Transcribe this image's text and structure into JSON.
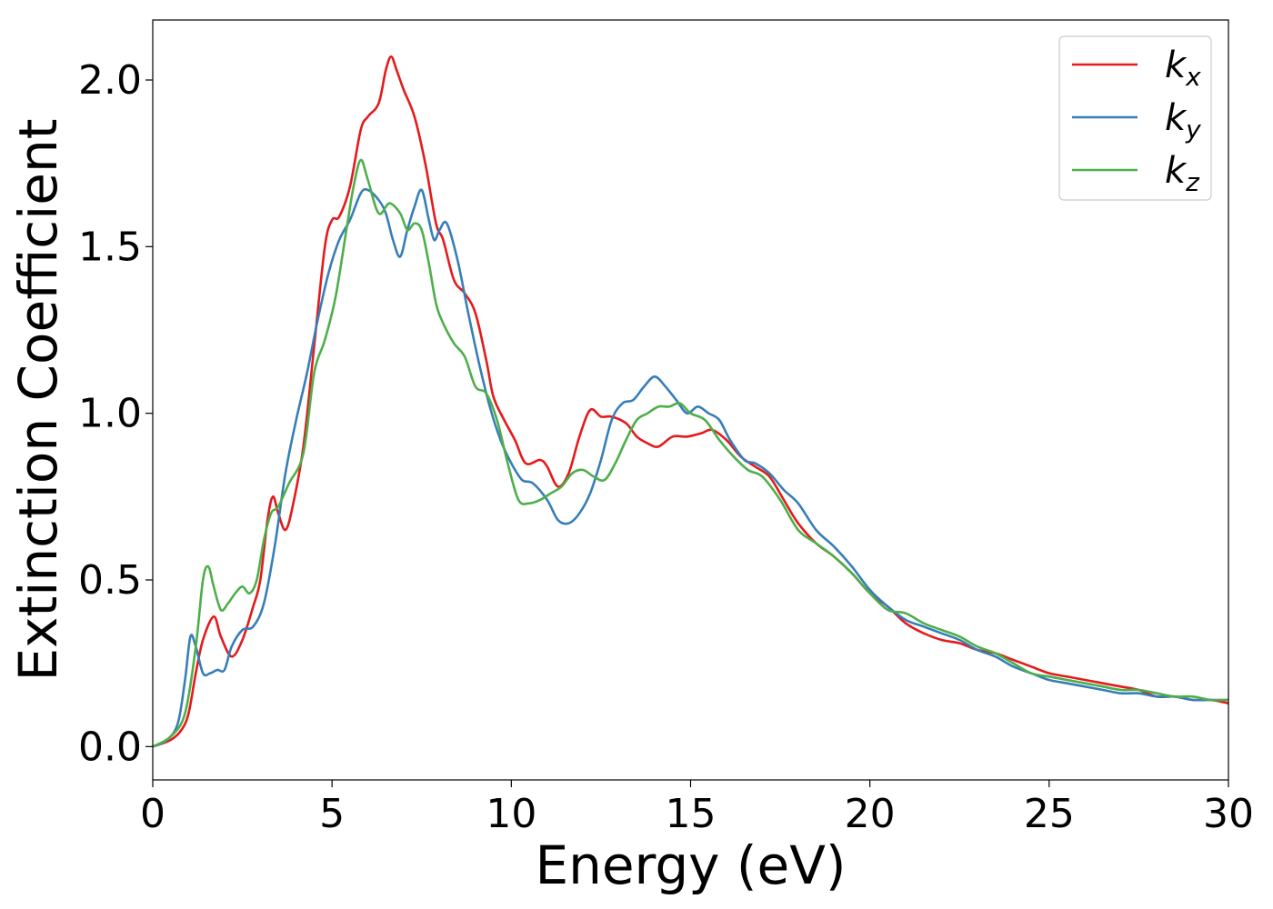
{
  "chart_data": {
    "type": "line",
    "xlabel": "Energy (eV)",
    "ylabel": "Extinction Coefficient",
    "xlim": [
      0,
      30
    ],
    "ylim": [
      -0.1,
      2.18
    ],
    "x_ticks": [
      0,
      5,
      10,
      15,
      20,
      25,
      30
    ],
    "x_tick_labels": [
      "0",
      "5",
      "10",
      "15",
      "20",
      "25",
      "30"
    ],
    "y_ticks": [
      0.0,
      0.5,
      1.0,
      1.5,
      2.0
    ],
    "y_tick_labels": [
      "0.0",
      "0.5",
      "1.0",
      "1.5",
      "2.0"
    ],
    "grid": false,
    "legend_position": "top-right",
    "series": [
      {
        "name": "k_x",
        "legend_main": "k",
        "legend_sub": "x",
        "color": "#e41a1c",
        "x": [
          0,
          0.5,
          0.8,
          1.0,
          1.2,
          1.4,
          1.7,
          1.9,
          2.2,
          2.5,
          2.8,
          3.0,
          3.2,
          3.35,
          3.5,
          3.7,
          3.9,
          4.2,
          4.5,
          4.8,
          5.0,
          5.2,
          5.5,
          5.8,
          6.0,
          6.3,
          6.5,
          6.65,
          6.8,
          7.0,
          7.3,
          7.6,
          7.9,
          8.1,
          8.4,
          8.7,
          9.0,
          9.3,
          9.5,
          9.8,
          10.1,
          10.4,
          10.8,
          11.0,
          11.3,
          11.6,
          11.9,
          12.2,
          12.5,
          12.8,
          13.2,
          13.5,
          13.8,
          14.1,
          14.5,
          14.9,
          15.3,
          15.6,
          16.0,
          16.4,
          16.8,
          17.2,
          17.6,
          18.0,
          18.5,
          19.0,
          19.5,
          20.0,
          20.5,
          21.0,
          21.5,
          22.0,
          22.5,
          23.0,
          23.5,
          24.0,
          24.5,
          25.0,
          25.5,
          26.0,
          26.5,
          27.0,
          27.5,
          28.0,
          28.5,
          29.0,
          29.5,
          30.0
        ],
        "y": [
          0.0,
          0.02,
          0.05,
          0.1,
          0.22,
          0.32,
          0.39,
          0.33,
          0.27,
          0.32,
          0.42,
          0.5,
          0.68,
          0.75,
          0.7,
          0.65,
          0.72,
          0.9,
          1.2,
          1.5,
          1.58,
          1.59,
          1.68,
          1.85,
          1.89,
          1.93,
          2.03,
          2.07,
          2.03,
          1.97,
          1.89,
          1.75,
          1.57,
          1.52,
          1.4,
          1.36,
          1.3,
          1.16,
          1.05,
          0.98,
          0.92,
          0.85,
          0.86,
          0.84,
          0.78,
          0.82,
          0.93,
          1.01,
          0.99,
          0.99,
          0.97,
          0.93,
          0.91,
          0.9,
          0.93,
          0.93,
          0.94,
          0.95,
          0.92,
          0.87,
          0.84,
          0.81,
          0.74,
          0.67,
          0.61,
          0.57,
          0.52,
          0.46,
          0.42,
          0.37,
          0.34,
          0.32,
          0.31,
          0.29,
          0.28,
          0.26,
          0.24,
          0.22,
          0.21,
          0.2,
          0.19,
          0.18,
          0.17,
          0.15,
          0.15,
          0.14,
          0.14,
          0.13
        ]
      },
      {
        "name": "k_y",
        "legend_main": "k",
        "legend_sub": "y",
        "color": "#377eb8",
        "x": [
          0,
          0.4,
          0.7,
          0.9,
          1.05,
          1.2,
          1.4,
          1.6,
          1.8,
          2.0,
          2.2,
          2.5,
          2.8,
          3.1,
          3.4,
          3.7,
          4.0,
          4.3,
          4.6,
          4.9,
          5.2,
          5.5,
          5.8,
          6.0,
          6.3,
          6.5,
          6.7,
          6.9,
          7.1,
          7.3,
          7.5,
          7.7,
          7.85,
          8.0,
          8.2,
          8.5,
          8.8,
          9.1,
          9.4,
          9.7,
          10.0,
          10.3,
          10.6,
          11.0,
          11.3,
          11.6,
          11.9,
          12.2,
          12.5,
          12.8,
          13.1,
          13.4,
          13.7,
          14.0,
          14.3,
          14.6,
          14.9,
          15.2,
          15.5,
          15.8,
          16.1,
          16.5,
          16.8,
          17.2,
          17.6,
          18.0,
          18.5,
          19.0,
          19.5,
          20.0,
          20.5,
          21.0,
          21.5,
          22.0,
          22.5,
          23.0,
          23.5,
          24.0,
          24.5,
          25.0,
          25.5,
          26.0,
          26.5,
          27.0,
          27.5,
          28.0,
          28.5,
          29.0,
          29.5,
          30.0
        ],
        "y": [
          0.0,
          0.02,
          0.07,
          0.2,
          0.33,
          0.3,
          0.22,
          0.22,
          0.23,
          0.23,
          0.3,
          0.35,
          0.36,
          0.43,
          0.6,
          0.82,
          0.98,
          1.12,
          1.28,
          1.42,
          1.52,
          1.58,
          1.66,
          1.67,
          1.64,
          1.6,
          1.52,
          1.47,
          1.55,
          1.62,
          1.67,
          1.58,
          1.52,
          1.55,
          1.57,
          1.46,
          1.3,
          1.15,
          1.02,
          0.92,
          0.85,
          0.8,
          0.79,
          0.74,
          0.68,
          0.67,
          0.7,
          0.76,
          0.86,
          0.98,
          1.03,
          1.04,
          1.08,
          1.11,
          1.08,
          1.04,
          1.0,
          1.02,
          1.0,
          0.98,
          0.92,
          0.86,
          0.85,
          0.82,
          0.77,
          0.73,
          0.65,
          0.6,
          0.54,
          0.47,
          0.42,
          0.38,
          0.36,
          0.34,
          0.32,
          0.29,
          0.27,
          0.24,
          0.22,
          0.2,
          0.19,
          0.18,
          0.17,
          0.16,
          0.16,
          0.15,
          0.15,
          0.14,
          0.14,
          0.14
        ]
      },
      {
        "name": "k_z",
        "legend_main": "k",
        "legend_sub": "z",
        "color": "#4daf4a",
        "x": [
          0,
          0.5,
          0.9,
          1.2,
          1.4,
          1.55,
          1.7,
          1.9,
          2.1,
          2.3,
          2.5,
          2.7,
          2.9,
          3.1,
          3.3,
          3.5,
          3.8,
          4.2,
          4.5,
          4.8,
          5.1,
          5.4,
          5.6,
          5.8,
          6.0,
          6.3,
          6.6,
          6.9,
          7.1,
          7.3,
          7.5,
          7.7,
          7.9,
          8.1,
          8.4,
          8.7,
          9.0,
          9.3,
          9.6,
          9.9,
          10.2,
          10.5,
          10.8,
          11.1,
          11.4,
          11.7,
          12.0,
          12.3,
          12.6,
          12.9,
          13.2,
          13.5,
          13.8,
          14.1,
          14.4,
          14.7,
          15.0,
          15.4,
          15.8,
          16.2,
          16.6,
          17.0,
          17.5,
          18.0,
          18.5,
          19.0,
          19.5,
          20.0,
          20.5,
          21.0,
          21.5,
          22.0,
          22.5,
          23.0,
          23.5,
          24.0,
          24.5,
          25.0,
          25.5,
          26.0,
          26.5,
          27.0,
          27.5,
          28.0,
          28.5,
          29.0,
          29.5,
          30.0
        ],
        "y": [
          0.0,
          0.03,
          0.1,
          0.3,
          0.5,
          0.54,
          0.48,
          0.41,
          0.43,
          0.46,
          0.48,
          0.46,
          0.5,
          0.62,
          0.7,
          0.72,
          0.79,
          0.88,
          1.12,
          1.22,
          1.35,
          1.55,
          1.68,
          1.76,
          1.7,
          1.6,
          1.63,
          1.6,
          1.55,
          1.57,
          1.55,
          1.45,
          1.33,
          1.27,
          1.21,
          1.17,
          1.08,
          1.06,
          0.98,
          0.85,
          0.74,
          0.73,
          0.74,
          0.76,
          0.78,
          0.82,
          0.83,
          0.81,
          0.8,
          0.85,
          0.92,
          0.98,
          1.0,
          1.02,
          1.02,
          1.03,
          1.0,
          0.98,
          0.92,
          0.87,
          0.83,
          0.81,
          0.74,
          0.65,
          0.61,
          0.57,
          0.52,
          0.46,
          0.41,
          0.4,
          0.37,
          0.35,
          0.33,
          0.3,
          0.28,
          0.25,
          0.22,
          0.21,
          0.2,
          0.19,
          0.18,
          0.17,
          0.17,
          0.16,
          0.15,
          0.15,
          0.14,
          0.14
        ]
      }
    ]
  }
}
